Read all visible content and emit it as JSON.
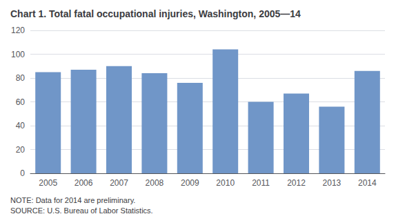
{
  "chart_data": {
    "type": "bar",
    "title": "Chart 1. Total fatal occupational injuries, Washington, 2005—14",
    "categories": [
      "2005",
      "2006",
      "2007",
      "2008",
      "2009",
      "2010",
      "2011",
      "2012",
      "2013",
      "2014"
    ],
    "values": [
      85,
      87,
      90,
      84,
      76,
      104,
      60,
      67,
      56,
      86
    ],
    "color": "#7096c8",
    "ylim": [
      0,
      120
    ],
    "yticks": [
      0,
      20,
      40,
      60,
      80,
      100,
      120
    ],
    "grid": true,
    "annotations": [
      "NOTE: Data for 2014 are preliminary.",
      "SOURCE: U.S. Bureau of Labor Statistics."
    ]
  }
}
